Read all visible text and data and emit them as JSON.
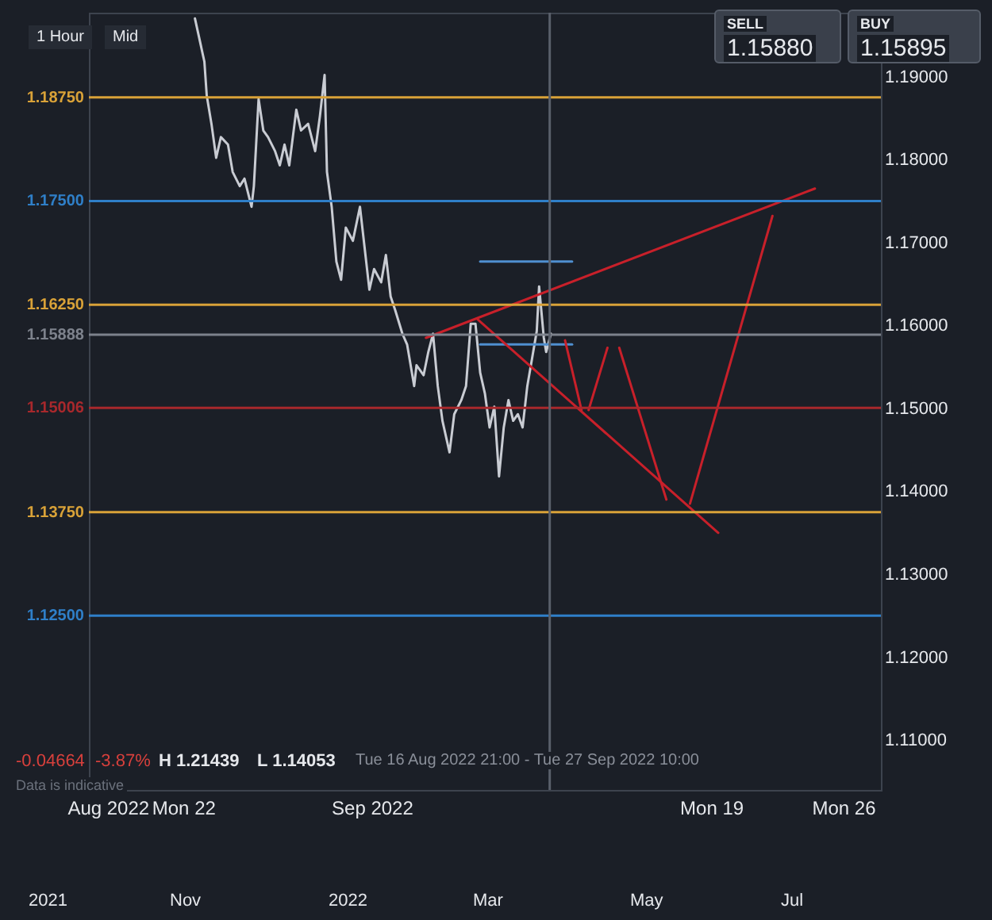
{
  "chart_data": {
    "type": "line",
    "annotations": [
      "1 Hour",
      "Mid",
      "SELL",
      "1.15880",
      "BUY",
      "1.15895",
      "-0.04664",
      "-3.87%",
      "H 1.21439",
      "L 1.14053",
      "Tue 16 Aug 2022 21:00 - Tue 27 Sep 2022 10:00",
      "Data is indicative",
      "2021",
      "Nov",
      "2022",
      "Mar",
      "May",
      "Jul"
    ],
    "xlim": [
      "2022-08-17",
      "2022-09-28"
    ],
    "xticks": [
      {
        "value": "2022-08-18",
        "label": "Aug 2022"
      },
      {
        "value": "2022-08-22",
        "label": "Mon 22"
      },
      {
        "value": "2022-09-01",
        "label": "Sep 2022"
      },
      {
        "value": "2022-09-19",
        "label": "Mon 19"
      },
      {
        "value": "2022-09-26",
        "label": "Mon 26"
      }
    ],
    "ylim": [
      1.104,
      1.1977
    ],
    "yticks": [
      {
        "value": 1.11,
        "label": "1.11000"
      },
      {
        "value": 1.12,
        "label": "1.12000"
      },
      {
        "value": 1.13,
        "label": "1.13000"
      },
      {
        "value": 1.14,
        "label": "1.14000"
      },
      {
        "value": 1.15,
        "label": "1.15000"
      },
      {
        "value": 1.16,
        "label": "1.16000"
      },
      {
        "value": 1.17,
        "label": "1.17000"
      },
      {
        "value": 1.18,
        "label": "1.18000"
      },
      {
        "value": 1.19,
        "label": "1.19000"
      }
    ],
    "grid": false,
    "ref_lines": [
      {
        "axis": "y",
        "value": 1.1875,
        "label": "1.18750",
        "color": "#d9a238"
      },
      {
        "axis": "y",
        "value": 1.175,
        "label": "1.17500",
        "color": "#2f7fc8"
      },
      {
        "axis": "y",
        "value": 1.1625,
        "label": "1.16250",
        "color": "#d9a238"
      },
      {
        "axis": "y",
        "value": 1.15888,
        "label": "1.15888",
        "color": "#7d828c"
      },
      {
        "axis": "y",
        "value": 1.15006,
        "label": "1.15006",
        "color": "#a8282c"
      },
      {
        "axis": "y",
        "value": 1.1375,
        "label": "1.13750",
        "color": "#d9a238"
      },
      {
        "axis": "y",
        "value": 1.125,
        "label": "1.12500",
        "color": "#2f7fc8"
      },
      {
        "axis": "x",
        "value": "2022-09-10T10:30",
        "color": "#5a606b"
      }
    ],
    "series": [
      {
        "type": "line",
        "color": "#c9ccd3",
        "x": [
          "2022-08-22T15:00",
          "2022-08-23T03:00",
          "2022-08-23T06:00",
          "2022-08-23T12:00",
          "2022-08-23T18:00",
          "2022-08-24T00:00",
          "2022-08-24T09:00",
          "2022-08-24T15:00",
          "2022-08-25T00:00",
          "2022-08-25T06:00",
          "2022-08-25T15:00",
          "2022-08-25T18:00",
          "2022-08-26T00:00",
          "2022-08-26T06:00",
          "2022-08-26T12:00",
          "2022-08-26T21:00",
          "2022-08-27T03:00",
          "2022-08-27T09:00",
          "2022-08-27T15:00",
          "2022-08-28T00:00",
          "2022-08-28T06:00",
          "2022-08-28T15:00",
          "2022-08-29T00:00",
          "2022-08-29T06:00",
          "2022-08-29T12:00",
          "2022-08-29T15:00",
          "2022-08-29T21:00",
          "2022-08-30T03:00",
          "2022-08-30T09:00",
          "2022-08-30T15:00",
          "2022-08-31T00:00",
          "2022-08-31T09:00",
          "2022-08-31T15:00",
          "2022-08-31T21:00",
          "2022-09-01T03:00",
          "2022-09-01T12:00",
          "2022-09-01T18:00",
          "2022-09-02T00:00",
          "2022-09-02T06:00",
          "2022-09-02T15:00",
          "2022-09-02T21:00",
          "2022-09-03T06:00",
          "2022-09-03T09:00",
          "2022-09-03T18:00",
          "2022-09-04T00:00",
          "2022-09-04T06:00",
          "2022-09-04T12:00",
          "2022-09-04T18:00",
          "2022-09-05T03:00",
          "2022-09-05T09:00",
          "2022-09-05T18:00",
          "2022-09-06T00:00",
          "2022-09-06T06:00",
          "2022-09-06T12:00",
          "2022-09-06T18:00",
          "2022-09-07T00:00",
          "2022-09-07T06:00",
          "2022-09-07T12:00",
          "2022-09-07T18:00",
          "2022-09-08T00:00",
          "2022-09-08T06:00",
          "2022-09-08T12:00",
          "2022-09-08T18:00",
          "2022-09-09T00:00",
          "2022-09-09T06:00",
          "2022-09-09T12:00",
          "2022-09-09T18:00",
          "2022-09-09T21:00",
          "2022-09-10T03:00",
          "2022-09-10T06:00",
          "2022-09-10T12:00"
        ],
        "values": [
          1.197,
          1.1918,
          1.1877,
          1.1843,
          1.1802,
          1.1827,
          1.1818,
          1.1785,
          1.1768,
          1.1777,
          1.1743,
          1.1768,
          1.1873,
          1.1835,
          1.1827,
          1.181,
          1.1793,
          1.1818,
          1.1793,
          1.186,
          1.1835,
          1.1843,
          1.181,
          1.1852,
          1.1902,
          1.1785,
          1.1743,
          1.1677,
          1.1655,
          1.1718,
          1.1702,
          1.1743,
          1.1693,
          1.1643,
          1.1668,
          1.1652,
          1.1685,
          1.1635,
          1.1618,
          1.159,
          1.1577,
          1.1527,
          1.1552,
          1.154,
          1.1568,
          1.159,
          1.1527,
          1.1485,
          1.1447,
          1.1493,
          1.151,
          1.1527,
          1.1602,
          1.1602,
          1.1543,
          1.1518,
          1.1477,
          1.1502,
          1.1418,
          1.1477,
          1.151,
          1.1485,
          1.1493,
          1.1477,
          1.1527,
          1.156,
          1.1593,
          1.1647,
          1.1585,
          1.1568,
          1.159
        ]
      },
      {
        "type": "line",
        "color": "#4f8fd0",
        "x": [
          "2022-09-06T18:00",
          "2022-09-11T15:00"
        ],
        "values": [
          1.1677,
          1.1677
        ]
      },
      {
        "type": "line",
        "color": "#4f8fd0",
        "x": [
          "2022-09-06T18:00",
          "2022-09-11T15:00"
        ],
        "values": [
          1.1577,
          1.1577
        ]
      },
      {
        "type": "line",
        "color": "#c8202a",
        "x": [
          "2022-09-03T21:00",
          "2022-09-24T12:00"
        ],
        "values": [
          1.1585,
          1.1765
        ]
      },
      {
        "type": "line",
        "color": "#c8202a",
        "x": [
          "2022-09-06T15:00",
          "2022-09-19T09:00"
        ],
        "values": [
          1.1607,
          1.135
        ]
      },
      {
        "type": "line",
        "color": "#c8202a",
        "x": [
          "2022-09-11T06:00",
          "2022-09-12T03:00"
        ],
        "values": [
          1.1582,
          1.1498
        ]
      },
      {
        "type": "line",
        "color": "#c8202a",
        "x": [
          "2022-09-12T12:00",
          "2022-09-13T12:00"
        ],
        "values": [
          1.1498,
          1.1573
        ]
      },
      {
        "type": "line",
        "color": "#c8202a",
        "x": [
          "2022-09-14T03:00",
          "2022-09-16T15:00"
        ],
        "values": [
          1.1573,
          1.139
        ]
      },
      {
        "type": "line",
        "color": "#c8202a",
        "x": [
          "2022-09-17T21:00",
          "2022-09-22T06:00"
        ],
        "values": [
          1.1385,
          1.1732
        ]
      }
    ]
  }
}
